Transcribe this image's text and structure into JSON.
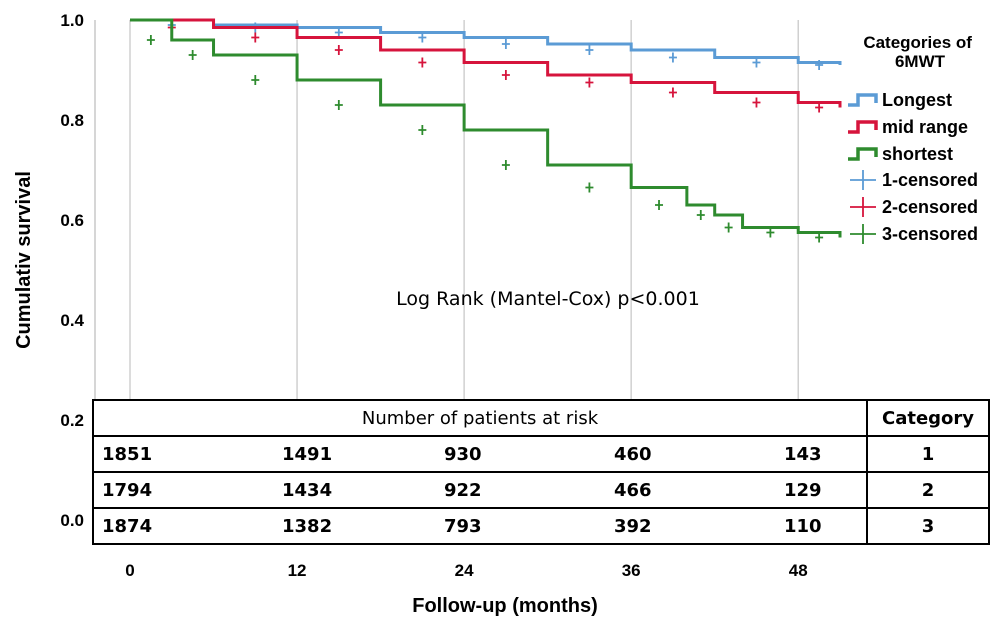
{
  "chart_data": {
    "type": "line",
    "step": true,
    "xlabel": "Follow-up (months)",
    "ylabel": "Cumulativ survival",
    "x_ticks": [
      "0",
      "12",
      "24",
      "36",
      "48"
    ],
    "y_ticks": [
      "0.0",
      "0.2",
      "0.4",
      "0.6",
      "0.8",
      "1.0"
    ],
    "xlim": [
      0,
      51
    ],
    "ylim": [
      0.0,
      1.0
    ],
    "grid": "vertical",
    "legend_placement": "right",
    "legend_title": "Categories of 6MWT",
    "annotation": "Log Rank (Mantel-Cox) p<0.001",
    "series": [
      {
        "name": "Longest",
        "censored_name": "1-censored",
        "color": "#5b9bd5",
        "x": [
          0,
          6,
          12,
          18,
          24,
          30,
          36,
          42,
          48,
          51
        ],
        "y": [
          1.0,
          0.99,
          0.985,
          0.975,
          0.965,
          0.952,
          0.94,
          0.925,
          0.915,
          0.91
        ]
      },
      {
        "name": "mid range",
        "censored_name": "2-censored",
        "color": "#d6143c",
        "x": [
          0,
          6,
          12,
          18,
          24,
          30,
          36,
          42,
          48,
          51
        ],
        "y": [
          1.0,
          0.985,
          0.965,
          0.94,
          0.915,
          0.89,
          0.875,
          0.855,
          0.835,
          0.825
        ]
      },
      {
        "name": "shortest",
        "censored_name": "3-censored",
        "color": "#2e8b2e",
        "x": [
          0,
          3,
          6,
          12,
          18,
          24,
          30,
          36,
          40,
          42,
          44,
          48,
          51
        ],
        "y": [
          1.0,
          0.96,
          0.93,
          0.88,
          0.83,
          0.78,
          0.71,
          0.665,
          0.63,
          0.61,
          0.585,
          0.575,
          0.565
        ]
      }
    ]
  },
  "risk_table": {
    "title": "Number of patients at risk",
    "category_header": "Category",
    "rows": [
      {
        "values": [
          "1851",
          "1491",
          "930",
          "460",
          "143"
        ],
        "category": "1"
      },
      {
        "values": [
          "1794",
          "1434",
          "922",
          "466",
          "129"
        ],
        "category": "2"
      },
      {
        "values": [
          "1874",
          "1382",
          "793",
          "392",
          "110"
        ],
        "category": "3"
      }
    ]
  }
}
